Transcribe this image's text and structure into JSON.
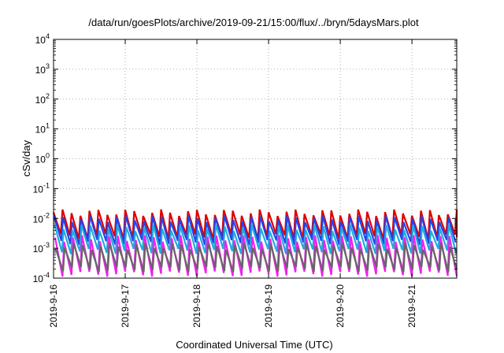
{
  "chart_data": {
    "type": "line",
    "title": "/data/run/goesPlots/archive/2019-09-21/15:00/flux/../bryn/5daysMars.plot",
    "xlabel": "Coordinated Universal Time (UTC)",
    "ylabel": "cSv/day",
    "y_scale": "log",
    "ylim": [
      0.0001,
      10000
    ],
    "xlim": [
      "2019-09-16T00:00",
      "2019-09-21T15:00"
    ],
    "x_tick_labels": [
      "2019-9-16",
      "2019-9-17",
      "2019-9-18",
      "2019-9-19",
      "2019-9-20",
      "2019-9-21"
    ],
    "y_tick_labels": [
      {
        "base": "10",
        "exp": "-4"
      },
      {
        "base": "10",
        "exp": "-3"
      },
      {
        "base": "10",
        "exp": "-2"
      },
      {
        "base": "10",
        "exp": "-1"
      },
      {
        "base": "10",
        "exp": "0"
      },
      {
        "base": "10",
        "exp": "1"
      },
      {
        "base": "10",
        "exp": "2"
      },
      {
        "base": "10",
        "exp": "3"
      },
      {
        "base": "10",
        "exp": "4"
      }
    ],
    "grid": true,
    "series": [
      {
        "color": "#dd0000",
        "peak": 0.016,
        "trough": 0.0025,
        "period_hours": 3.0
      },
      {
        "color": "#2244ee",
        "peak": 0.01,
        "trough": 0.0016,
        "period_hours": 3.0
      },
      {
        "color": "#22aadd",
        "peak": 0.005,
        "trough": 0.0008,
        "period_hours": 3.0
      },
      {
        "color": "#ee22ee",
        "peak": 0.0022,
        "trough": 0.00014,
        "period_hours": 3.0
      },
      {
        "color": "#666666",
        "peak": 0.0012,
        "trough": 0.0002,
        "period_hours": 3.0
      }
    ]
  }
}
